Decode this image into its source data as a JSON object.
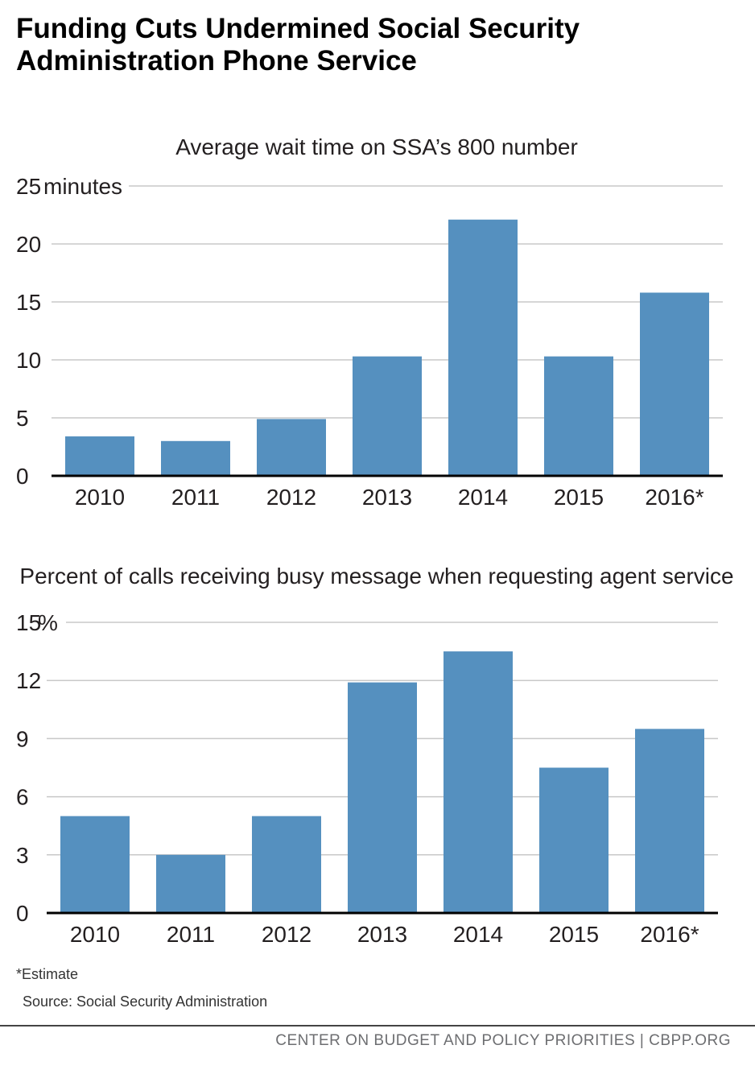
{
  "title": "Funding Cuts Undermined Social Security Administration Phone Service",
  "colors": {
    "bar": "#5590bf",
    "grid": "#c8c8c8",
    "axis": "#000000"
  },
  "chart_data": [
    {
      "type": "bar",
      "title": "Average wait time on SSA’s 800 number",
      "categories": [
        "2010",
        "2011",
        "2012",
        "2013",
        "2014",
        "2015",
        "2016*"
      ],
      "values": [
        3.4,
        3.0,
        4.9,
        10.3,
        22.1,
        10.3,
        15.8
      ],
      "yticks": [
        "0",
        "5",
        "10",
        "15",
        "20",
        "25"
      ],
      "ylim": [
        0,
        25
      ],
      "yunit": "minutes",
      "xlabel": "",
      "ylabel": ""
    },
    {
      "type": "bar",
      "title": "Percent of calls receiving busy message when requesting agent service",
      "categories": [
        "2010",
        "2011",
        "2012",
        "2013",
        "2014",
        "2015",
        "2016*"
      ],
      "values": [
        5.0,
        3.0,
        5.0,
        11.9,
        13.5,
        7.5,
        9.5
      ],
      "yticks": [
        "0",
        "3",
        "6",
        "9",
        "12",
        "15"
      ],
      "ylim": [
        0,
        15
      ],
      "yunit": "%",
      "xlabel": "",
      "ylabel": ""
    }
  ],
  "notes": {
    "estimate": "*Estimate",
    "source": "Source: Social Security Administration"
  },
  "footer": "CENTER ON BUDGET AND POLICY PRIORITIES | CBPP.ORG"
}
